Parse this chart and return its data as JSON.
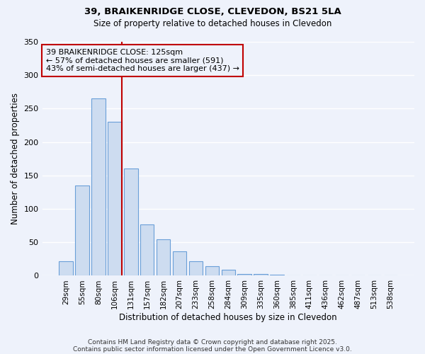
{
  "title1": "39, BRAIKENRIDGE CLOSE, CLEVEDON, BS21 5LA",
  "title2": "Size of property relative to detached houses in Clevedon",
  "xlabel": "Distribution of detached houses by size in Clevedon",
  "ylabel": "Number of detached properties",
  "categories": [
    "29sqm",
    "55sqm",
    "80sqm",
    "106sqm",
    "131sqm",
    "157sqm",
    "182sqm",
    "207sqm",
    "233sqm",
    "258sqm",
    "284sqm",
    "309sqm",
    "335sqm",
    "360sqm",
    "385sqm",
    "411sqm",
    "436sqm",
    "462sqm",
    "487sqm",
    "513sqm",
    "538sqm"
  ],
  "values": [
    22,
    135,
    265,
    230,
    160,
    77,
    55,
    37,
    22,
    14,
    9,
    3,
    3,
    2,
    1,
    1,
    1,
    1,
    0,
    1,
    1
  ],
  "bar_color": "#cddcf0",
  "bar_edge_color": "#6a9fd8",
  "marker_line_color": "#c00000",
  "annotation_text": "39 BRAIKENRIDGE CLOSE: 125sqm\n← 57% of detached houses are smaller (591)\n43% of semi-detached houses are larger (437) →",
  "annotation_box_color": "#c00000",
  "ylim": [
    0,
    350
  ],
  "yticks": [
    0,
    50,
    100,
    150,
    200,
    250,
    300,
    350
  ],
  "footer1": "Contains HM Land Registry data © Crown copyright and database right 2025.",
  "footer2": "Contains public sector information licensed under the Open Government Licence v3.0.",
  "bg_color": "#eef2fb",
  "grid_color": "#ffffff"
}
